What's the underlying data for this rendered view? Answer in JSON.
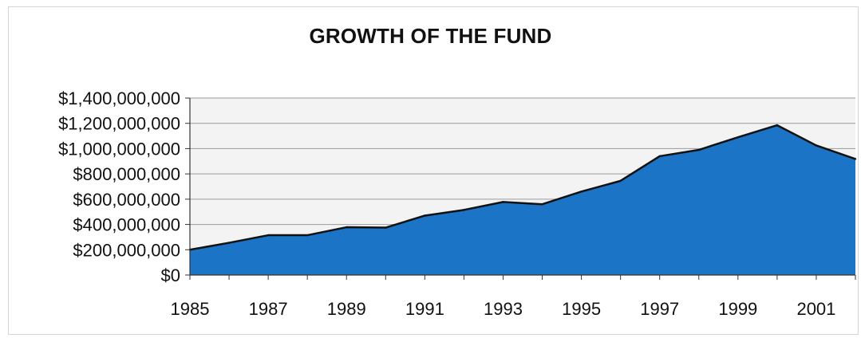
{
  "chart_data": {
    "type": "area",
    "title": "GROWTH OF THE FUND",
    "xlabel": "",
    "ylabel": "",
    "x_tick_labels": [
      "1985",
      "1987",
      "1989",
      "1991",
      "1993",
      "1995",
      "1997",
      "1999",
      "2001"
    ],
    "y_tick_labels": [
      "$0",
      "$200,000,000",
      "$400,000,000",
      "$600,000,000",
      "$800,000,000",
      "$1,000,000,000",
      "$1,200,000,000",
      "$1,400,000,000"
    ],
    "y_ticks": [
      0,
      200000000,
      400000000,
      600000000,
      800000000,
      1000000000,
      1200000000,
      1400000000
    ],
    "ylim": [
      0,
      1400000000
    ],
    "grid": "horizontal",
    "legend": "none",
    "colors": {
      "fill": "#1b74c6",
      "line": "#111111",
      "grid": "#9a9a9a",
      "plot_bg": "#f3f3f3"
    },
    "series": [
      {
        "x": [
          1985,
          1986,
          1987,
          1988,
          1989,
          1990,
          1991,
          1992,
          1993,
          1994,
          1995,
          1996,
          1997,
          1998,
          1999,
          2000,
          2001,
          2002
        ],
        "values": [
          200000000,
          255000000,
          315000000,
          315000000,
          378000000,
          375000000,
          470000000,
          515000000,
          578000000,
          560000000,
          660000000,
          745000000,
          940000000,
          990000000,
          1090000000,
          1185000000,
          1025000000,
          918000000
        ]
      }
    ]
  }
}
